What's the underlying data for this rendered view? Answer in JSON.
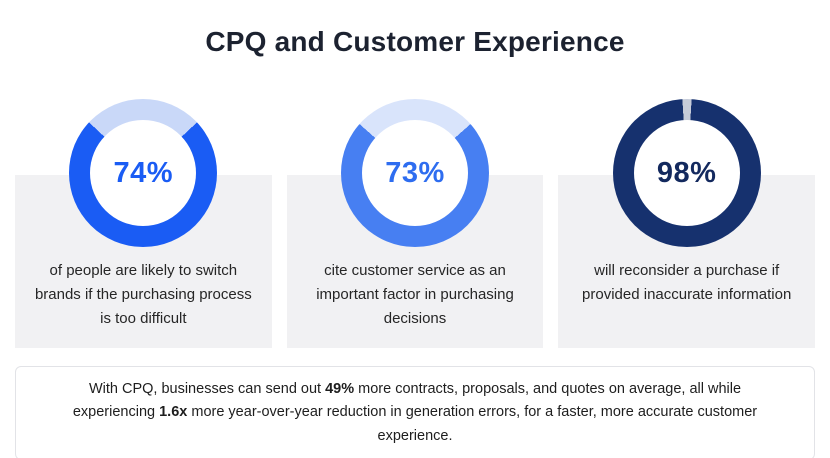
{
  "title": "CPQ and Customer Experience",
  "cards": [
    {
      "percent_label": "74%",
      "percent_value": 74,
      "ring_color": "#1a5cf4",
      "track_color": "#c9d8f8",
      "label_color": "#1a5cf4",
      "description": "of people are likely to switch brands if the purchasing process is too difficult"
    },
    {
      "percent_label": "73%",
      "percent_value": 73,
      "ring_color": "#477ff2",
      "track_color": "#d9e4fb",
      "label_color": "#2e6df0",
      "description": "cite customer service as an important factor in purchasing decisions"
    },
    {
      "percent_label": "98%",
      "percent_value": 98,
      "ring_color": "#16316e",
      "track_color": "#c6ccd9",
      "label_color": "#13295e",
      "description": "will reconsider a purchase if provided inaccurate information"
    }
  ],
  "footnote": {
    "part1": "With CPQ, businesses can send out ",
    "bold1": "49%",
    "part2": " more contracts, proposals, and quotes on average, all while experiencing ",
    "bold2": "1.6x",
    "part3": " more year-over-year reduction in generation errors, for a faster, more accurate customer experience."
  },
  "colors": {
    "card_background": "#f1f1f3",
    "note_border": "#e2e3e7",
    "title_color": "#1c2230"
  },
  "chart_data": [
    {
      "type": "pie",
      "title": "74%",
      "values": [
        74,
        26
      ],
      "categories": [
        "filled",
        "remaining"
      ],
      "caption": "of people are likely to switch brands if the purchasing process is too difficult"
    },
    {
      "type": "pie",
      "title": "73%",
      "values": [
        73,
        27
      ],
      "categories": [
        "filled",
        "remaining"
      ],
      "caption": "cite customer service as an important factor in purchasing decisions"
    },
    {
      "type": "pie",
      "title": "98%",
      "values": [
        98,
        2
      ],
      "categories": [
        "filled",
        "remaining"
      ],
      "caption": "will reconsider a purchase if provided inaccurate information"
    }
  ]
}
